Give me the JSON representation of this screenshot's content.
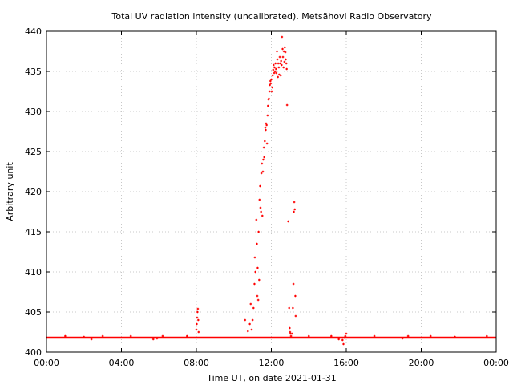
{
  "chart_data": {
    "type": "scatter",
    "title": "Total UV radiation intensity (uncalibrated). Metsähovi Radio Observatory",
    "xlabel": "Time UT, on date 2021-01-31",
    "ylabel": "Arbitrary unit",
    "xlim": [
      0,
      24
    ],
    "ylim": [
      400,
      440
    ],
    "x_ticks": [
      {
        "value": 0,
        "label": "00:00"
      },
      {
        "value": 4,
        "label": "04:00"
      },
      {
        "value": 8,
        "label": "08:00"
      },
      {
        "value": 12,
        "label": "12:00"
      },
      {
        "value": 16,
        "label": "16:00"
      },
      {
        "value": 20,
        "label": "20:00"
      },
      {
        "value": 24,
        "label": "00:00"
      }
    ],
    "y_ticks": [
      {
        "value": 400,
        "label": "400"
      },
      {
        "value": 405,
        "label": "405"
      },
      {
        "value": 410,
        "label": "410"
      },
      {
        "value": 415,
        "label": "415"
      },
      {
        "value": 420,
        "label": "420"
      },
      {
        "value": 425,
        "label": "425"
      },
      {
        "value": 430,
        "label": "430"
      },
      {
        "value": 435,
        "label": "435"
      },
      {
        "value": 440,
        "label": "440"
      }
    ],
    "grid": true,
    "marker_color": "#ff0000",
    "baseline": {
      "x_start": 0,
      "x_end": 24,
      "y": 401.8
    },
    "series": [
      {
        "points": [
          [
            1.0,
            402.0
          ],
          [
            2.0,
            401.9
          ],
          [
            2.4,
            401.6
          ],
          [
            3.0,
            402.0
          ],
          [
            4.5,
            402.0
          ],
          [
            5.7,
            401.6
          ],
          [
            5.9,
            401.7
          ],
          [
            6.2,
            402.0
          ],
          [
            7.5,
            402.0
          ],
          [
            8.0,
            402.8
          ],
          [
            8.02,
            403.5
          ],
          [
            8.04,
            404.3
          ],
          [
            8.06,
            405.0
          ],
          [
            8.08,
            405.4
          ],
          [
            8.1,
            404.0
          ],
          [
            8.12,
            402.5
          ],
          [
            10.6,
            404.0
          ],
          [
            10.75,
            402.6
          ],
          [
            10.85,
            403.5
          ],
          [
            10.9,
            406.0
          ],
          [
            10.95,
            402.8
          ],
          [
            11.0,
            404.0
          ],
          [
            11.05,
            405.5
          ],
          [
            11.1,
            408.5
          ],
          [
            11.12,
            411.8
          ],
          [
            11.15,
            410.0
          ],
          [
            11.2,
            416.5
          ],
          [
            11.23,
            413.5
          ],
          [
            11.25,
            407.0
          ],
          [
            11.27,
            410.5
          ],
          [
            11.3,
            406.5
          ],
          [
            11.32,
            415.0
          ],
          [
            11.35,
            409.0
          ],
          [
            11.37,
            419.0
          ],
          [
            11.4,
            420.7
          ],
          [
            11.42,
            418.0
          ],
          [
            11.45,
            417.5
          ],
          [
            11.47,
            422.3
          ],
          [
            11.5,
            423.5
          ],
          [
            11.52,
            417.0
          ],
          [
            11.55,
            422.5
          ],
          [
            11.57,
            424.0
          ],
          [
            11.6,
            425.5
          ],
          [
            11.62,
            424.3
          ],
          [
            11.65,
            426.3
          ],
          [
            11.68,
            428.0
          ],
          [
            11.7,
            427.7
          ],
          [
            11.72,
            428.5
          ],
          [
            11.75,
            428.3
          ],
          [
            11.77,
            426.0
          ],
          [
            11.8,
            429.5
          ],
          [
            11.82,
            430.7
          ],
          [
            11.85,
            431.5
          ],
          [
            11.87,
            431.6
          ],
          [
            11.9,
            432.5
          ],
          [
            11.92,
            433.3
          ],
          [
            11.95,
            433.8
          ],
          [
            11.97,
            433.5
          ],
          [
            12.0,
            434.0
          ],
          [
            12.02,
            432.5
          ],
          [
            12.05,
            433.0
          ],
          [
            12.07,
            434.5
          ],
          [
            12.1,
            435.2
          ],
          [
            12.12,
            435.8
          ],
          [
            12.15,
            434.8
          ],
          [
            12.17,
            435.5
          ],
          [
            12.2,
            435.0
          ],
          [
            12.22,
            436.0
          ],
          [
            12.25,
            435.3
          ],
          [
            12.27,
            434.8
          ],
          [
            12.3,
            437.5
          ],
          [
            12.32,
            436.5
          ],
          [
            12.35,
            434.3
          ],
          [
            12.37,
            436.0
          ],
          [
            12.4,
            435.5
          ],
          [
            12.42,
            434.6
          ],
          [
            12.45,
            436.8
          ],
          [
            12.47,
            436.0
          ],
          [
            12.5,
            434.5
          ],
          [
            12.52,
            436.3
          ],
          [
            12.55,
            435.8
          ],
          [
            12.57,
            439.3
          ],
          [
            12.6,
            437.8
          ],
          [
            12.62,
            436.8
          ],
          [
            12.65,
            435.5
          ],
          [
            12.67,
            437.5
          ],
          [
            12.7,
            436.2
          ],
          [
            12.72,
            438.0
          ],
          [
            12.75,
            437.4
          ],
          [
            12.77,
            436.5
          ],
          [
            12.8,
            436.0
          ],
          [
            12.82,
            435.3
          ],
          [
            12.84,
            430.8
          ],
          [
            12.9,
            416.3
          ],
          [
            12.95,
            405.5
          ],
          [
            12.98,
            403.0
          ],
          [
            13.0,
            402.5
          ],
          [
            13.02,
            402.3
          ],
          [
            13.05,
            402.0
          ],
          [
            13.1,
            402.3
          ],
          [
            13.15,
            405.5
          ],
          [
            13.18,
            408.5
          ],
          [
            13.2,
            417.5
          ],
          [
            13.22,
            418.7
          ],
          [
            13.25,
            417.8
          ],
          [
            13.28,
            407.0
          ],
          [
            13.3,
            404.5
          ],
          [
            14.0,
            402.0
          ],
          [
            15.2,
            402.0
          ],
          [
            15.6,
            401.6
          ],
          [
            15.8,
            401.5
          ],
          [
            15.85,
            401.0
          ],
          [
            15.9,
            401.8
          ],
          [
            15.95,
            402.0
          ],
          [
            16.0,
            402.3
          ],
          [
            17.5,
            402.0
          ],
          [
            19.0,
            401.7
          ],
          [
            19.3,
            402.0
          ],
          [
            20.5,
            402.0
          ],
          [
            21.8,
            401.9
          ],
          [
            23.5,
            402.0
          ]
        ]
      }
    ]
  }
}
